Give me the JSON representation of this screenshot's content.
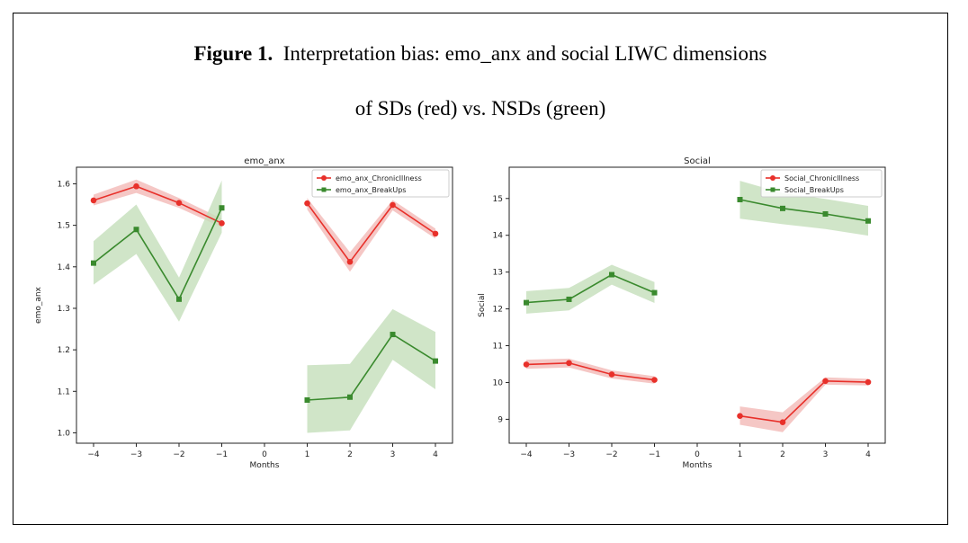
{
  "figure": {
    "label": "Figure 1.",
    "caption_line1": "Interpretation bias: emo_anx and social LIWC dimensions",
    "caption_line2": "of SDs (red) vs. NSDs (green)"
  },
  "colors": {
    "red": "#e8302a",
    "red_band": "#f3b9b6",
    "green": "#3a8a2e",
    "green_band": "#c4deba"
  },
  "chart_data": [
    {
      "type": "line",
      "title": "emo_anx",
      "xlabel": "Months",
      "ylabel": "emo_anx",
      "xlim": [
        -4.4,
        4.4
      ],
      "ylim": [
        0.975,
        1.64
      ],
      "xticks": [
        -4,
        -3,
        -2,
        -1,
        0,
        1,
        2,
        3,
        4
      ],
      "xtick_labels": [
        "−4",
        "−3",
        "−2",
        "−1",
        "0",
        "1",
        "2",
        "3",
        "4"
      ],
      "yticks": [
        1.0,
        1.1,
        1.2,
        1.3,
        1.4,
        1.5,
        1.6
      ],
      "ytick_labels": [
        "1.0",
        "1.1",
        "1.2",
        "1.3",
        "1.4",
        "1.5",
        "1.6"
      ],
      "legend_position": "top-right",
      "series": [
        {
          "name": "emo_anx_ChronicIllness",
          "color_key": "red",
          "marker": "circle",
          "segments": [
            {
              "x": [
                -4,
                -3,
                -2,
                -1
              ],
              "y": [
                1.56,
                1.594,
                1.554,
                1.505
              ],
              "lower": [
                1.548,
                1.578,
                1.542,
                1.495
              ],
              "upper": [
                1.574,
                1.61,
                1.566,
                1.516
              ]
            },
            {
              "x": [
                1,
                2,
                3,
                4
              ],
              "y": [
                1.553,
                1.412,
                1.549,
                1.48
              ],
              "lower": [
                1.538,
                1.388,
                1.536,
                1.468
              ],
              "upper": [
                1.566,
                1.435,
                1.561,
                1.492
              ]
            }
          ]
        },
        {
          "name": "emo_anx_BreakUps",
          "color_key": "green",
          "marker": "square",
          "segments": [
            {
              "x": [
                -4,
                -3,
                -2,
                -1
              ],
              "y": [
                1.409,
                1.49,
                1.322,
                1.542
              ],
              "lower": [
                1.357,
                1.431,
                1.268,
                1.482
              ],
              "upper": [
                1.462,
                1.55,
                1.374,
                1.608
              ]
            },
            {
              "x": [
                1,
                2,
                3,
                4
              ],
              "y": [
                1.079,
                1.086,
                1.237,
                1.173
              ],
              "lower": [
                1.0,
                1.006,
                1.176,
                1.105
              ],
              "upper": [
                1.163,
                1.166,
                1.298,
                1.243
              ]
            }
          ]
        }
      ]
    },
    {
      "type": "line",
      "title": "Social",
      "xlabel": "Months",
      "ylabel": "Social",
      "xlim": [
        -4.4,
        4.4
      ],
      "ylim": [
        8.35,
        15.85
      ],
      "xticks": [
        -4,
        -3,
        -2,
        -1,
        0,
        1,
        2,
        3,
        4
      ],
      "xtick_labels": [
        "−4",
        "−3",
        "−2",
        "−1",
        "0",
        "1",
        "2",
        "3",
        "4"
      ],
      "yticks": [
        9,
        10,
        11,
        12,
        13,
        14,
        15
      ],
      "ytick_labels": [
        "9",
        "10",
        "11",
        "12",
        "13",
        "14",
        "15"
      ],
      "legend_position": "top-right",
      "series": [
        {
          "name": "Social_ChronicIllness",
          "color_key": "red",
          "marker": "circle",
          "segments": [
            {
              "x": [
                -4,
                -3,
                -2,
                -1
              ],
              "y": [
                10.49,
                10.53,
                10.22,
                10.07
              ],
              "lower": [
                10.37,
                10.41,
                10.11,
                9.97
              ],
              "upper": [
                10.62,
                10.65,
                10.33,
                10.17
              ]
            },
            {
              "x": [
                1,
                2,
                3,
                4
              ],
              "y": [
                9.09,
                8.92,
                10.04,
                10.01
              ],
              "lower": [
                8.85,
                8.65,
                9.94,
                9.92
              ],
              "upper": [
                9.35,
                9.19,
                10.14,
                10.1
              ]
            }
          ]
        },
        {
          "name": "Social_BreakUps",
          "color_key": "green",
          "marker": "square",
          "segments": [
            {
              "x": [
                -4,
                -3,
                -2,
                -1
              ],
              "y": [
                12.17,
                12.26,
                12.93,
                12.44
              ],
              "lower": [
                11.87,
                11.96,
                12.66,
                12.16
              ],
              "upper": [
                12.48,
                12.57,
                13.2,
                12.73
              ]
            },
            {
              "x": [
                1,
                2,
                3,
                4
              ],
              "y": [
                14.97,
                14.73,
                14.58,
                14.39
              ],
              "lower": [
                14.45,
                14.3,
                14.17,
                13.99
              ],
              "upper": [
                15.48,
                15.15,
                14.99,
                14.8
              ]
            }
          ]
        }
      ]
    }
  ]
}
